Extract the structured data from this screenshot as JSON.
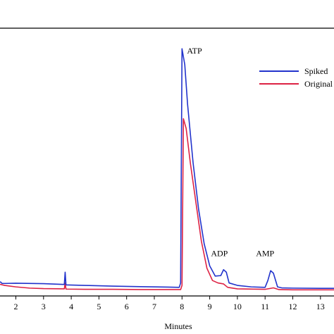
{
  "chart_data": {
    "type": "line",
    "xlabel": "Minutes",
    "ylabel": "",
    "xlim": [
      1.3,
      13.5
    ],
    "ylim": [
      0,
      1
    ],
    "grid": false,
    "legend_position": "top-right",
    "x_ticks": [
      "2",
      "3",
      "4",
      "5",
      "6",
      "7",
      "8",
      "9",
      "10",
      "11",
      "12",
      "13"
    ],
    "annotations": [
      {
        "label": "ATP",
        "x": 8.45,
        "y": 0.965
      },
      {
        "label": "ADP",
        "x": 9.35,
        "y": 0.14
      },
      {
        "label": "AMP",
        "x": 11.0,
        "y": 0.14
      }
    ],
    "series": [
      {
        "name": "Spiked",
        "color": "#2233cc",
        "points": [
          [
            1.3,
            0.031
          ],
          [
            1.45,
            0.034
          ],
          [
            1.5,
            0.028
          ],
          [
            1.6,
            0.028
          ],
          [
            2.0,
            0.029
          ],
          [
            3.0,
            0.027
          ],
          [
            3.75,
            0.024
          ],
          [
            3.78,
            0.074
          ],
          [
            3.81,
            0.022
          ],
          [
            4.5,
            0.02
          ],
          [
            5.5,
            0.017
          ],
          [
            6.5,
            0.015
          ],
          [
            7.5,
            0.013
          ],
          [
            7.9,
            0.012
          ],
          [
            7.95,
            0.03
          ],
          [
            8.0,
            0.985
          ],
          [
            8.1,
            0.92
          ],
          [
            8.2,
            0.76
          ],
          [
            8.4,
            0.52
          ],
          [
            8.6,
            0.33
          ],
          [
            8.8,
            0.19
          ],
          [
            9.0,
            0.1
          ],
          [
            9.2,
            0.058
          ],
          [
            9.4,
            0.06
          ],
          [
            9.5,
            0.084
          ],
          [
            9.6,
            0.074
          ],
          [
            9.7,
            0.03
          ],
          [
            10.0,
            0.02
          ],
          [
            10.5,
            0.014
          ],
          [
            11.0,
            0.012
          ],
          [
            11.1,
            0.04
          ],
          [
            11.2,
            0.08
          ],
          [
            11.3,
            0.07
          ],
          [
            11.45,
            0.014
          ],
          [
            11.6,
            0.01
          ],
          [
            12.0,
            0.009
          ],
          [
            13.0,
            0.008
          ],
          [
            13.5,
            0.008
          ]
        ]
      },
      {
        "name": "Original",
        "color": "#dd2244",
        "points": [
          [
            1.3,
            0.028
          ],
          [
            1.6,
            0.02
          ],
          [
            2.0,
            0.014
          ],
          [
            2.5,
            0.009
          ],
          [
            3.0,
            0.007
          ],
          [
            3.75,
            0.006
          ],
          [
            3.78,
            0.03
          ],
          [
            3.81,
            0.005
          ],
          [
            4.5,
            0.004
          ],
          [
            5.5,
            0.004
          ],
          [
            6.5,
            0.003
          ],
          [
            7.5,
            0.003
          ],
          [
            7.95,
            0.003
          ],
          [
            8.0,
            0.02
          ],
          [
            8.05,
            0.7
          ],
          [
            8.15,
            0.66
          ],
          [
            8.3,
            0.52
          ],
          [
            8.5,
            0.36
          ],
          [
            8.7,
            0.2
          ],
          [
            8.9,
            0.09
          ],
          [
            9.1,
            0.04
          ],
          [
            9.3,
            0.03
          ],
          [
            9.5,
            0.026
          ],
          [
            9.65,
            0.012
          ],
          [
            10.0,
            0.006
          ],
          [
            11.0,
            0.004
          ],
          [
            11.3,
            0.01
          ],
          [
            11.5,
            0.003
          ],
          [
            12.0,
            0.002
          ],
          [
            13.0,
            0.002
          ],
          [
            13.5,
            0.002
          ]
        ]
      }
    ]
  }
}
